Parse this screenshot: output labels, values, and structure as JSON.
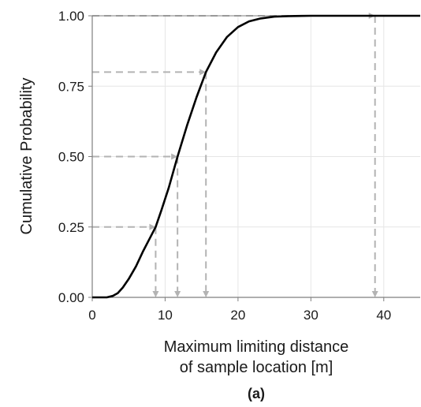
{
  "chart_data": {
    "type": "line",
    "xlabel_line1": "Maximum limiting distance",
    "xlabel_line2": "of sample location [m]",
    "ylabel": "Cumulative Probability",
    "panel_label": "(a)",
    "xlim": [
      0,
      45
    ],
    "ylim": [
      0,
      1
    ],
    "x_ticks": [
      0,
      10,
      20,
      30,
      40
    ],
    "x_tick_labels": [
      "0",
      "10",
      "20",
      "30",
      "40"
    ],
    "y_ticks": [
      0,
      0.25,
      0.5,
      0.75,
      1.0
    ],
    "y_tick_labels": [
      "0.00",
      "0.25",
      "0.50",
      "0.75",
      "1.00"
    ],
    "grid": true,
    "series": [
      {
        "x": [
          0,
          1,
          2,
          2.8,
          3.5,
          4.2,
          5,
          6,
          7,
          8,
          8.7,
          9.5,
          10.5,
          11.7,
          13,
          14.3,
          15.6,
          17,
          18.5,
          20,
          21.5,
          23,
          25,
          27,
          30,
          35,
          40,
          45
        ],
        "y": [
          0,
          0,
          0,
          0.005,
          0.015,
          0.035,
          0.065,
          0.11,
          0.165,
          0.215,
          0.25,
          0.31,
          0.39,
          0.5,
          0.61,
          0.71,
          0.8,
          0.87,
          0.925,
          0.96,
          0.98,
          0.99,
          0.997,
          0.999,
          1.0,
          1.0,
          1.0,
          1.0
        ]
      }
    ],
    "reference_lines": [
      {
        "x": 8.7,
        "y": 0.25
      },
      {
        "x": 11.7,
        "y": 0.5
      },
      {
        "x": 15.6,
        "y": 0.8
      },
      {
        "x": 38.8,
        "y": 1.0
      }
    ],
    "colors": {
      "curve": "#000000",
      "reference": "#b3b3b3",
      "grid": "#e6e6e6",
      "axis": "#7f7f7f"
    }
  }
}
